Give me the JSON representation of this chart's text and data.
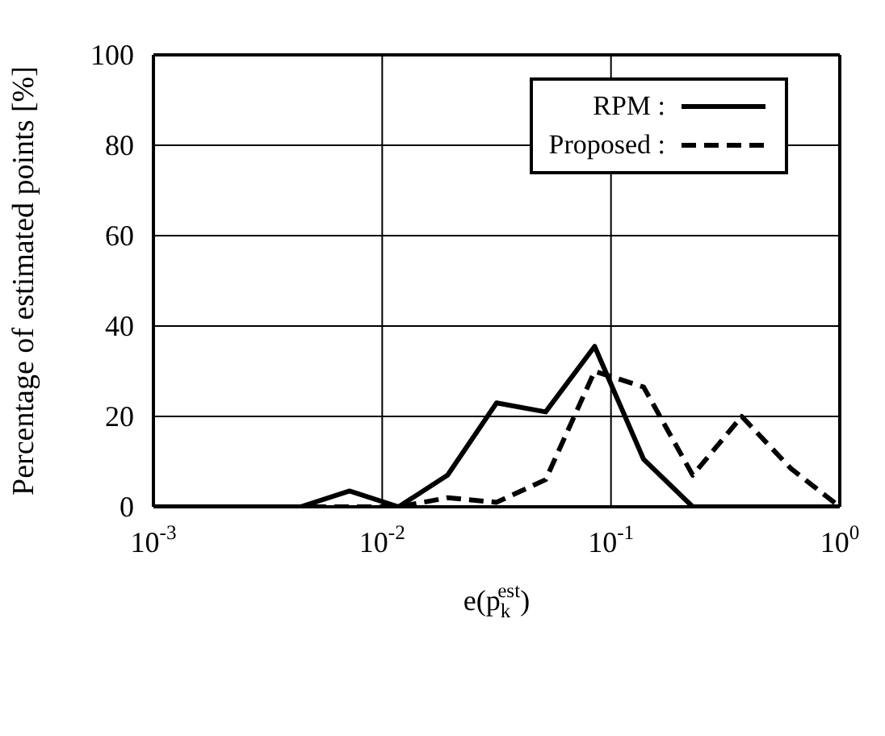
{
  "chart_data": {
    "type": "line",
    "xlabel": "e(p$_{k}$$^{est}$)",
    "ylabel": "Percentage  of estimated points [%]",
    "x": [
      0.001,
      0.001638,
      0.002683,
      0.004394,
      0.007197,
      0.01179,
      0.01931,
      0.03162,
      0.0518,
      0.08483,
      0.1389,
      0.2276,
      0.3728,
      0.6105,
      1
    ],
    "series": [
      {
        "name": "RPM :",
        "color": "#000000",
        "line_style": "solid",
        "values": [
          0,
          0,
          0,
          0,
          3.5,
          0,
          7,
          23,
          21,
          35.5,
          10.5,
          0,
          0,
          0,
          0
        ]
      },
      {
        "name": "Proposed :",
        "color": "#000000",
        "line_style": "dashed",
        "values": [
          0,
          0,
          0,
          0,
          0,
          0,
          2,
          1,
          6,
          30,
          26.5,
          7,
          20,
          8.5,
          0
        ]
      }
    ],
    "log": "x",
    "xlim": [
      0.001,
      1
    ],
    "xticks": [
      {
        "value": 0.001,
        "label": "10$^{-3}$"
      },
      {
        "value": 0.01,
        "label": "10$^{-2}$"
      },
      {
        "value": 0.1,
        "label": "10$^{-1}$"
      },
      {
        "value": 1,
        "label": "10$^{0}$"
      }
    ],
    "ylim": [
      0,
      100
    ],
    "yticks": [
      0,
      20,
      40,
      60,
      80,
      100
    ],
    "grid": true,
    "legend": "top right",
    "marker": "none"
  }
}
